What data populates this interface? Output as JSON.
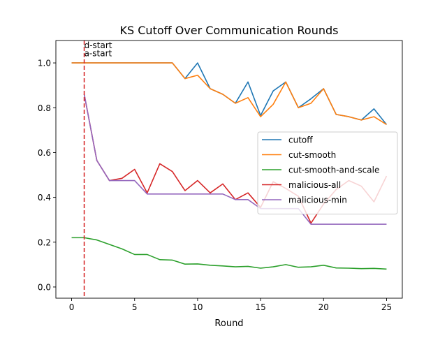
{
  "chart_data": {
    "type": "line",
    "title": "KS Cutoff Over Communication Rounds",
    "xlabel": "Round",
    "ylabel": "",
    "xlim": [
      -1.25,
      26.25
    ],
    "ylim": [
      -0.05,
      1.1
    ],
    "xticks": [
      0,
      5,
      10,
      15,
      20,
      25
    ],
    "yticks": [
      0.0,
      0.2,
      0.4,
      0.6,
      0.8,
      1.0
    ],
    "xtick_labels": [
      "0",
      "5",
      "10",
      "15",
      "20",
      "25"
    ],
    "ytick_labels": [
      "0.0",
      "0.2",
      "0.4",
      "0.6",
      "0.8",
      "1.0"
    ],
    "grid": false,
    "legend_position": "center-right",
    "x": [
      0,
      1,
      2,
      3,
      4,
      5,
      6,
      7,
      8,
      9,
      10,
      11,
      12,
      13,
      14,
      15,
      16,
      17,
      18,
      19,
      20,
      21,
      22,
      23,
      24,
      25
    ],
    "series": [
      {
        "name": "cutoff",
        "color": "#1f77b4",
        "x": [
          0,
          1,
          2,
          3,
          4,
          5,
          6,
          7,
          8,
          9,
          10,
          11,
          12,
          13,
          14,
          15,
          16,
          17,
          18,
          19,
          20,
          21,
          22,
          23,
          24,
          25
        ],
        "values": [
          1.0,
          1.0,
          1.0,
          1.0,
          1.0,
          1.0,
          1.0,
          1.0,
          1.0,
          0.93,
          1.0,
          0.885,
          0.86,
          0.82,
          0.915,
          0.765,
          0.875,
          0.915,
          0.8,
          0.84,
          0.885,
          0.77,
          0.76,
          0.745,
          0.795,
          0.725
        ]
      },
      {
        "name": "cut-smooth",
        "color": "#ff7f0e",
        "x": [
          0,
          1,
          2,
          3,
          4,
          5,
          6,
          7,
          8,
          9,
          10,
          11,
          12,
          13,
          14,
          15,
          16,
          17,
          18,
          19,
          20,
          21,
          22,
          23,
          24,
          25
        ],
        "values": [
          1.0,
          1.0,
          1.0,
          1.0,
          1.0,
          1.0,
          1.0,
          1.0,
          1.0,
          0.93,
          0.945,
          0.885,
          0.86,
          0.82,
          0.845,
          0.76,
          0.815,
          0.915,
          0.8,
          0.82,
          0.885,
          0.77,
          0.76,
          0.745,
          0.76,
          0.725
        ]
      },
      {
        "name": "cut-smooth-and-scale",
        "color": "#2ca02c",
        "x": [
          0,
          1,
          2,
          3,
          4,
          5,
          6,
          7,
          8,
          9,
          10,
          11,
          12,
          13,
          14,
          15,
          16,
          17,
          18,
          19,
          20,
          21,
          22,
          23,
          24,
          25
        ],
        "values": [
          0.22,
          0.22,
          0.21,
          0.19,
          0.17,
          0.145,
          0.145,
          0.122,
          0.12,
          0.102,
          0.103,
          0.097,
          0.094,
          0.09,
          0.092,
          0.084,
          0.09,
          0.1,
          0.088,
          0.09,
          0.097,
          0.085,
          0.084,
          0.082,
          0.083,
          0.08
        ]
      },
      {
        "name": "malicious-all",
        "color": "#d62728",
        "x": [
          1,
          2,
          3,
          4,
          5,
          6,
          7,
          8,
          9,
          10,
          11,
          12,
          13,
          14,
          15,
          16,
          17,
          18,
          19,
          20,
          21,
          22,
          23,
          24,
          25
        ],
        "values": [
          0.86,
          0.565,
          0.475,
          0.485,
          0.525,
          0.42,
          0.55,
          0.515,
          0.43,
          0.475,
          0.42,
          0.46,
          0.39,
          0.42,
          0.355,
          0.47,
          0.44,
          0.405,
          0.285,
          0.37,
          0.435,
          0.475,
          0.45,
          0.38,
          0.495
        ]
      },
      {
        "name": "malicious-min",
        "color": "#9467bd",
        "x": [
          1,
          2,
          3,
          4,
          5,
          6,
          7,
          8,
          9,
          10,
          11,
          12,
          13,
          14,
          15,
          16,
          17,
          18,
          19,
          20,
          21,
          22,
          23,
          24,
          25
        ],
        "values": [
          0.86,
          0.565,
          0.475,
          0.475,
          0.475,
          0.415,
          0.415,
          0.415,
          0.415,
          0.415,
          0.415,
          0.415,
          0.39,
          0.39,
          0.35,
          0.35,
          0.35,
          0.35,
          0.28,
          0.28,
          0.28,
          0.28,
          0.28,
          0.28,
          0.28
        ]
      }
    ],
    "annotations": [
      {
        "text": "d-start",
        "x": 1,
        "y": 1.065
      },
      {
        "text": "a-start",
        "x": 1,
        "y": 1.03
      }
    ],
    "vlines": [
      {
        "x": 1,
        "color": "#d62728",
        "style": "dashed"
      }
    ]
  }
}
